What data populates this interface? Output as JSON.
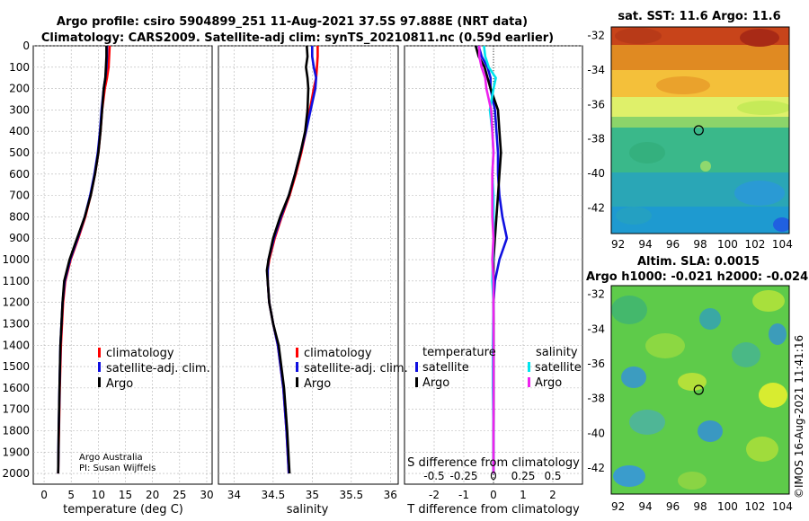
{
  "header": {
    "title_line1": "Argo profile: csiro 5904899_251 11-Aug-2021 37.5S 97.888E (NRT data)",
    "title_line2": "Climatology: CARS2009. Satellite-adj clim: synTS_20210811.nc (0.59d earlier)"
  },
  "colors": {
    "climatology": "#ff0000",
    "satellite_adj": "#1010e0",
    "argo": "#000000",
    "s_satellite": "#00e5ee",
    "s_argo": "#ee22ee",
    "grid": "#b4b4b4"
  },
  "depth_ticks": [
    "0",
    "100",
    "200",
    "300",
    "400",
    "500",
    "600",
    "700",
    "800",
    "900",
    "1000",
    "1100",
    "1200",
    "1300",
    "1400",
    "1500",
    "1600",
    "1700",
    "1800",
    "1900",
    "2000"
  ],
  "chart_data": [
    {
      "id": "temperature",
      "type": "line",
      "xlabel": "temperature (deg C)",
      "ylabel": "depth",
      "xlim": [
        -2,
        31
      ],
      "ylim": [
        2050,
        0
      ],
      "xticks": [
        "0",
        "5",
        "10",
        "15",
        "20",
        "25",
        "30"
      ],
      "legend": [
        "climatology",
        "satellite-adj. clim.",
        "Argo"
      ],
      "credit": [
        "Argo Australia",
        "PI: Susan Wijffels"
      ],
      "series": [
        {
          "name": "climatology",
          "depth": [
            0,
            50,
            100,
            150,
            200,
            300,
            400,
            500,
            600,
            700,
            800,
            900,
            1000,
            1100,
            1200,
            1400,
            1600,
            1800,
            2000
          ],
          "values": [
            12.1,
            12.0,
            11.9,
            11.6,
            11.2,
            10.7,
            10.4,
            10.0,
            9.4,
            8.6,
            7.6,
            6.3,
            4.9,
            3.9,
            3.5,
            3.1,
            2.9,
            2.75,
            2.6
          ]
        },
        {
          "name": "satellite-adj. clim.",
          "depth": [
            0,
            50,
            100,
            150,
            200,
            300,
            400,
            500,
            600,
            700,
            800,
            900,
            1000,
            1100,
            1200,
            1400,
            1600,
            1800,
            2000
          ],
          "values": [
            11.6,
            11.6,
            11.5,
            11.3,
            11.0,
            10.6,
            10.3,
            9.9,
            9.3,
            8.5,
            7.5,
            6.2,
            4.8,
            3.8,
            3.4,
            3.0,
            2.85,
            2.7,
            2.6
          ]
        },
        {
          "name": "Argo",
          "depth": [
            0,
            50,
            100,
            150,
            200,
            300,
            400,
            500,
            600,
            700,
            800,
            900,
            1000,
            1100,
            1200,
            1400,
            1600,
            1800,
            2000
          ],
          "values": [
            11.5,
            11.5,
            11.4,
            11.3,
            11.0,
            10.7,
            10.4,
            10.0,
            9.4,
            8.6,
            7.5,
            6.1,
            4.7,
            3.7,
            3.4,
            3.0,
            2.85,
            2.7,
            2.6
          ]
        }
      ]
    },
    {
      "id": "salinity",
      "type": "line",
      "xlabel": "salinity",
      "xlim": [
        33.8,
        36.1
      ],
      "ylim": [
        2050,
        0
      ],
      "xticks": [
        "34",
        "34.5",
        "35",
        "35.5",
        "36"
      ],
      "legend": [
        "climatology",
        "satellite-adj. clim.",
        "Argo"
      ],
      "series": [
        {
          "name": "climatology",
          "depth": [
            0,
            50,
            100,
            150,
            200,
            300,
            400,
            500,
            600,
            700,
            800,
            900,
            1000,
            1050,
            1100,
            1200,
            1300,
            1400,
            1600,
            1800,
            2000
          ],
          "values": [
            35.07,
            35.07,
            35.06,
            35.05,
            35.02,
            34.97,
            34.92,
            34.86,
            34.79,
            34.71,
            34.61,
            34.52,
            34.45,
            34.43,
            34.43,
            34.45,
            34.5,
            34.56,
            34.63,
            34.67,
            34.7
          ]
        },
        {
          "name": "satellite-adj. clim.",
          "depth": [
            0,
            50,
            100,
            150,
            200,
            300,
            400,
            500,
            600,
            700,
            800,
            900,
            1000,
            1050,
            1100,
            1200,
            1300,
            1400,
            1600,
            1800,
            2000
          ],
          "values": [
            35.0,
            35.0,
            35.02,
            35.05,
            35.04,
            34.98,
            34.92,
            34.85,
            34.78,
            34.7,
            34.6,
            34.51,
            34.44,
            34.43,
            34.43,
            34.45,
            34.5,
            34.56,
            34.63,
            34.67,
            34.7
          ]
        },
        {
          "name": "Argo",
          "depth": [
            0,
            50,
            100,
            150,
            200,
            300,
            400,
            500,
            600,
            700,
            800,
            900,
            1000,
            1050,
            1100,
            1200,
            1300,
            1400,
            1600,
            1800,
            2000
          ],
          "values": [
            34.93,
            34.94,
            34.92,
            34.94,
            34.95,
            34.94,
            34.91,
            34.85,
            34.78,
            34.7,
            34.59,
            34.5,
            34.44,
            34.42,
            34.43,
            34.45,
            34.5,
            34.57,
            34.64,
            34.68,
            34.71
          ]
        }
      ]
    },
    {
      "id": "difference",
      "type": "line",
      "xlabel": "T difference from climatology",
      "xlabel_top": "S difference from climatology",
      "xlim": [
        -3,
        3
      ],
      "ylim": [
        2050,
        0
      ],
      "xticks": [
        "-2",
        "-1",
        "0",
        "1",
        "2"
      ],
      "xticks_s": [
        "-0.5",
        "-0.25",
        "0",
        "0.25",
        "0.5"
      ],
      "legend_temperature_title": "temperature",
      "legend_salinity_title": "salinity",
      "legend_temperature": [
        "satellite",
        "Argo"
      ],
      "legend_salinity": [
        "satellite",
        "Argo"
      ],
      "series": [
        {
          "name": "T satellite",
          "depth": [
            0,
            50,
            100,
            150,
            200,
            300,
            400,
            500,
            600,
            700,
            800,
            900,
            1000,
            1100,
            1200,
            1400,
            1600,
            1800,
            2000
          ],
          "values": [
            -0.5,
            -0.4,
            -0.2,
            -0.1,
            -0.1,
            0.05,
            0.1,
            0.15,
            0.15,
            0.2,
            0.3,
            0.45,
            0.2,
            0.05,
            0,
            0,
            0,
            0,
            0
          ]
        },
        {
          "name": "T Argo",
          "depth": [
            0,
            50,
            100,
            150,
            200,
            300,
            400,
            500,
            600,
            700,
            800,
            900,
            1000,
            1100,
            1200,
            1400,
            1600,
            1800,
            2000
          ],
          "values": [
            -0.6,
            -0.5,
            -0.3,
            -0.2,
            -0.1,
            0.15,
            0.2,
            0.25,
            0.2,
            0.15,
            0.1,
            0.05,
            0.0,
            0,
            0,
            0,
            0,
            0,
            0
          ]
        },
        {
          "name": "S satellite",
          "depth": [
            0,
            50,
            100,
            150,
            200,
            300,
            400,
            500,
            600,
            700,
            800,
            900,
            1000,
            1100,
            1200,
            1400,
            1600,
            1800,
            2000
          ],
          "values": [
            -0.08,
            -0.07,
            -0.04,
            0.02,
            0.0,
            -0.03,
            -0.01,
            0.0,
            -0.01,
            0.0,
            0.0,
            0.0,
            -0.005,
            -0.01,
            0.0,
            -0.005,
            -0.005,
            0.0,
            0.0
          ]
        },
        {
          "name": "S Argo",
          "depth": [
            0,
            50,
            100,
            150,
            200,
            300,
            400,
            500,
            600,
            700,
            800,
            900,
            1000,
            1100,
            1200,
            1400,
            1600,
            1800,
            2000
          ],
          "values": [
            -0.12,
            -0.12,
            -0.1,
            -0.07,
            -0.06,
            -0.02,
            -0.01,
            0.0,
            -0.01,
            -0.01,
            -0.01,
            0.0,
            -0.01,
            0.0,
            0.0,
            0.0,
            0.0,
            0.0,
            0.0
          ]
        }
      ]
    }
  ],
  "maps": {
    "sst_title": "sat. SST: 11.6 Argo: 11.6",
    "sla_title1": "Altim. SLA: 0.0015",
    "sla_title2": "Argo h1000: -0.021 h2000: -0.024",
    "lat_ticks": [
      "-32",
      "-34",
      "-36",
      "-38",
      "-40",
      "-42"
    ],
    "lon_ticks": [
      "92",
      "94",
      "96",
      "98",
      "100",
      "102",
      "104"
    ],
    "argo_lon": 97.888,
    "argo_lat": -37.5,
    "timestamp": "©IMOS 16-Aug-2021 11:41:16"
  }
}
